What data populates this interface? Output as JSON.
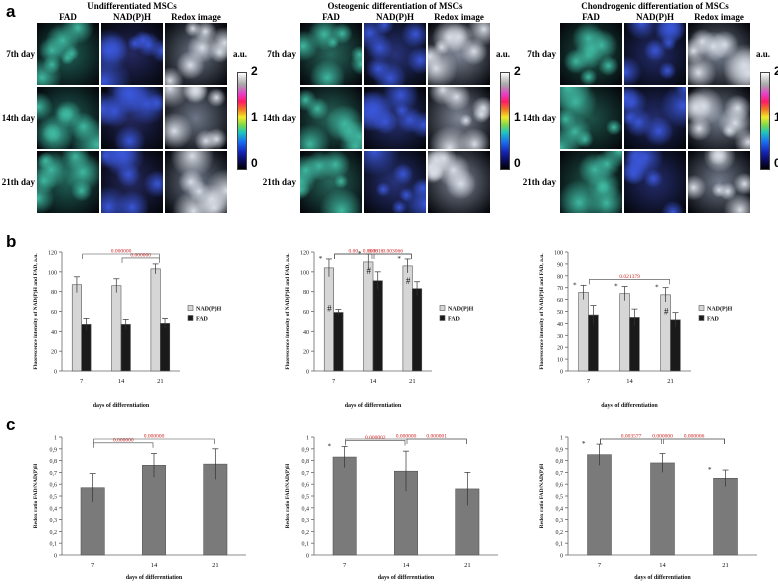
{
  "panels": {
    "a": "a",
    "b": "b",
    "c": "c"
  },
  "row_labels": [
    "7th day",
    "14th day",
    "21th day"
  ],
  "column_labels": [
    "FAD",
    "NAD(P)H",
    "Redox image"
  ],
  "colorbar": {
    "unit": "a.u.",
    "ticks": [
      "2",
      "1",
      "0"
    ]
  },
  "image_groups": [
    {
      "title": "Undifferentiated MSCs",
      "tone": [
        "#1f5f54",
        "#24285e",
        "#6d7686"
      ]
    },
    {
      "title": "Osteogenic differentiation of MSCs",
      "tone": [
        "#27665a",
        "#28337a",
        "#7f8696"
      ]
    },
    {
      "title": "Chondrogenic differentiation of MSCs",
      "tone": [
        "#1d5147",
        "#232c6c",
        "#737c8c"
      ]
    }
  ],
  "chart_data": [
    {
      "type": "bar",
      "panel": "b",
      "categories": [
        "7",
        "14",
        "21"
      ],
      "xlabel": "days of differentiation",
      "ylabel": "Fluorescence intensity of NAD(P)H and FAD, a.u.",
      "ylim": [
        0,
        120
      ],
      "yticks": [
        "0",
        "20",
        "40",
        "60",
        "80",
        "100",
        "120"
      ],
      "series": [
        {
          "name": "NAD(P)H",
          "color": "#d6d6d6",
          "values": [
            87,
            86,
            103
          ],
          "errors": [
            8,
            7,
            5
          ]
        },
        {
          "name": "FAD",
          "color": "#1a1a1a",
          "values": [
            47,
            47,
            48
          ],
          "errors": [
            6,
            5,
            5
          ]
        }
      ],
      "marks": {
        "NAD(P)H": [
          "",
          "",
          ""
        ],
        "FAD": [
          "",
          "",
          ""
        ]
      },
      "comparisons": [
        {
          "from": "7",
          "to": "21",
          "label": "0.000000"
        },
        {
          "from": "14",
          "to": "21",
          "label": "0.000000"
        }
      ]
    },
    {
      "type": "bar",
      "panel": "b",
      "categories": [
        "7",
        "14",
        "21"
      ],
      "xlabel": "days of differentiation",
      "ylabel": "Fluorescence intensity of NAD(P)H and FAD, a.u.",
      "ylim": [
        0,
        120
      ],
      "yticks": [
        "0",
        "20",
        "40",
        "60",
        "80",
        "100",
        "120"
      ],
      "series": [
        {
          "name": "NAD(P)H",
          "color": "#d6d6d6",
          "values": [
            104,
            110,
            106
          ],
          "errors": [
            9,
            8,
            7
          ]
        },
        {
          "name": "FAD",
          "color": "#1a1a1a",
          "values": [
            59,
            91,
            83
          ],
          "errors": [
            3,
            9,
            7
          ]
        }
      ],
      "marks": {
        "NAD(P)H": [
          "*",
          "*",
          "*"
        ],
        "FAD": [
          "#",
          "#",
          "#"
        ]
      },
      "comparisons": [
        {
          "from": "7",
          "to": "21",
          "label": "0.006816"
        },
        {
          "from": "7",
          "to": "14",
          "label": "0.00"
        },
        {
          "from": "14",
          "to": "21",
          "label": "0.003066"
        },
        {
          "from": "7",
          "to": "21",
          "label": "0.00"
        }
      ]
    },
    {
      "type": "bar",
      "panel": "b",
      "categories": [
        "7",
        "14",
        "21"
      ],
      "xlabel": "days of differentiation",
      "ylabel": "Fluorescence intensity of NAD(P)H and FAD, a.u.",
      "ylim": [
        0,
        100
      ],
      "yticks": [
        "0",
        "10",
        "20",
        "30",
        "40",
        "50",
        "60",
        "70",
        "80",
        "90",
        "100"
      ],
      "series": [
        {
          "name": "NAD(P)H",
          "color": "#d6d6d6",
          "values": [
            66,
            65,
            64
          ],
          "errors": [
            6,
            6,
            6
          ]
        },
        {
          "name": "FAD",
          "color": "#1a1a1a",
          "values": [
            47,
            45,
            43
          ],
          "errors": [
            8,
            7,
            6
          ]
        }
      ],
      "marks": {
        "NAD(P)H": [
          "*",
          "*",
          "*"
        ],
        "FAD": [
          "",
          "",
          "#"
        ]
      },
      "comparisons": [
        {
          "from": "7",
          "to": "21",
          "label": "0.021379"
        }
      ]
    },
    {
      "type": "bar",
      "panel": "c",
      "categories": [
        "7",
        "14",
        "21"
      ],
      "xlabel": "days of differentiation",
      "ylabel": "Redox ratio FAD/NAD(P)H",
      "ylim": [
        0,
        1
      ],
      "yticks": [
        "0",
        "0,1",
        "0,2",
        "0,3",
        "0,4",
        "0,5",
        "0,6",
        "0,7",
        "0,8",
        "0,9",
        "1"
      ],
      "series": [
        {
          "name": "Redox ratio",
          "color": "#7a7a7a",
          "values": [
            0.57,
            0.76,
            0.77
          ],
          "errors": [
            0.12,
            0.1,
            0.13
          ]
        }
      ],
      "marks": {
        "Redox ratio": [
          "",
          "",
          ""
        ]
      },
      "comparisons": [
        {
          "from": "7",
          "to": "21",
          "label": "0.000000"
        },
        {
          "from": "7",
          "to": "14",
          "label": "0.000000"
        }
      ]
    },
    {
      "type": "bar",
      "panel": "c",
      "categories": [
        "7",
        "14",
        "21"
      ],
      "xlabel": "days of differentiation",
      "ylabel": "Redox ratio FAD/NAD(P)H",
      "ylim": [
        0,
        1
      ],
      "yticks": [
        "0",
        "0,1",
        "0,2",
        "0,3",
        "0,4",
        "0,5",
        "0,6",
        "0,7",
        "0,8",
        "0,9",
        "1"
      ],
      "series": [
        {
          "name": "Redox ratio",
          "color": "#7a7a7a",
          "values": [
            0.83,
            0.71,
            0.56
          ],
          "errors": [
            0.09,
            0.17,
            0.14
          ]
        }
      ],
      "marks": {
        "Redox ratio": [
          "*",
          "",
          ""
        ]
      },
      "comparisons": [
        {
          "from": "7",
          "to": "21",
          "label": "0.000000"
        },
        {
          "from": "7",
          "to": "14",
          "label": "0.000002"
        },
        {
          "from": "14",
          "to": "21",
          "label": "0.000001"
        }
      ]
    },
    {
      "type": "bar",
      "panel": "c",
      "categories": [
        "7",
        "14",
        "21"
      ],
      "xlabel": "days of differentiation",
      "ylabel": "Redox ratio FAD/NAD(P)H",
      "ylim": [
        0,
        1
      ],
      "yticks": [
        "0",
        "0,1",
        "0,2",
        "0,3",
        "0,4",
        "0,5",
        "0,6",
        "0,7",
        "0,8",
        "0,9",
        "1"
      ],
      "series": [
        {
          "name": "Redox ratio",
          "color": "#7a7a7a",
          "values": [
            0.85,
            0.78,
            0.65
          ],
          "errors": [
            0.09,
            0.08,
            0.07
          ]
        }
      ],
      "marks": {
        "Redox ratio": [
          "*",
          "",
          "*"
        ]
      },
      "comparisons": [
        {
          "from": "7",
          "to": "21",
          "label": "0.000000"
        },
        {
          "from": "7",
          "to": "14",
          "label": "0.003577"
        },
        {
          "from": "14",
          "to": "21",
          "label": "0.000006"
        }
      ]
    }
  ]
}
